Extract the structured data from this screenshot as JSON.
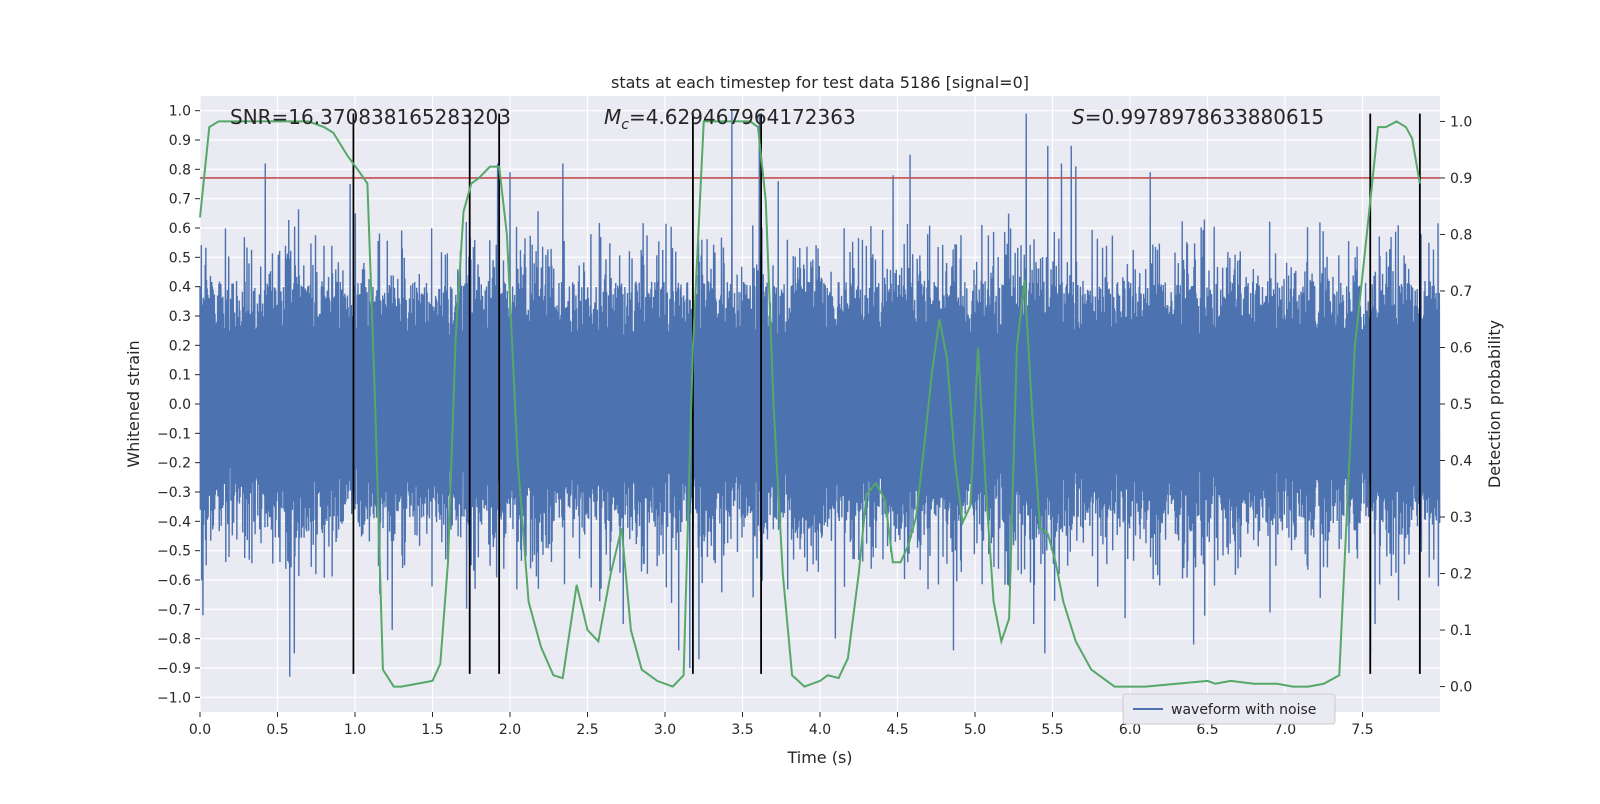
{
  "chart_data": {
    "type": "line",
    "title": "stats at each timestep for test data 5186 [signal=0]",
    "xlabel": "Time (s)",
    "ylabel": "Whitened strain",
    "y2label": "Detection probability",
    "xlim": [
      0,
      8
    ],
    "ylim": [
      -1.05,
      1.05
    ],
    "y2lim": [
      -0.045,
      1.045
    ],
    "grid": true,
    "legend_position": "lower-right",
    "x_ticks": [
      0.0,
      0.5,
      1.0,
      1.5,
      2.0,
      2.5,
      3.0,
      3.5,
      4.0,
      4.5,
      5.0,
      5.5,
      6.0,
      6.5,
      7.0,
      7.5
    ],
    "x_tick_labels": [
      "0.0",
      "0.5",
      "1.0",
      "1.5",
      "2.0",
      "2.5",
      "3.0",
      "3.5",
      "4.0",
      "4.5",
      "5.0",
      "5.5",
      "6.0",
      "6.5",
      "7.0",
      "7.5"
    ],
    "y_ticks": [
      1.0,
      0.9,
      0.8,
      0.7,
      0.6,
      0.5,
      0.4,
      0.3,
      0.2,
      0.1,
      0.0,
      -0.1,
      -0.2,
      -0.3,
      -0.4,
      -0.5,
      -0.6,
      -0.7,
      -0.8,
      -0.9,
      -1.0
    ],
    "y_tick_labels": [
      "1.0",
      "0.9",
      "0.8",
      "0.7",
      "0.6",
      "0.5",
      "0.4",
      "0.3",
      "0.2",
      "0.1",
      "0.0",
      "−0.1",
      "−0.2",
      "−0.3",
      "−0.4",
      "−0.5",
      "−0.6",
      "−0.7",
      "−0.8",
      "−0.9",
      "−1.0"
    ],
    "y2_ticks": [
      1.0,
      0.9,
      0.8,
      0.7,
      0.6,
      0.5,
      0.4,
      0.3,
      0.2,
      0.1,
      0.0
    ],
    "y2_tick_labels": [
      "1.0",
      "0.9",
      "0.8",
      "0.7",
      "0.6",
      "0.5",
      "0.4",
      "0.3",
      "0.2",
      "0.1",
      "0.0"
    ],
    "annotations": {
      "snr": "SNR=16.370838165283203",
      "mc_symbol": "M",
      "mc_subscript": "c",
      "mc_value": "=4.629467964172363",
      "s_symbol": "S",
      "s_value": "=0.9978978633880615"
    },
    "threshold": {
      "y2": 0.9,
      "color": "#c44e52"
    },
    "vertical_markers": {
      "x": [
        0.99,
        1.74,
        1.93,
        3.18,
        3.62,
        7.55,
        7.87
      ],
      "y_range": [
        -0.92,
        0.99
      ],
      "color": "#000000"
    },
    "series": [
      {
        "name": "waveform with noise",
        "color": "#4c72b0",
        "envelope_typical": 0.42,
        "peaks": [
          [
            0.02,
            -0.72
          ],
          [
            0.42,
            0.82
          ],
          [
            0.58,
            -0.93
          ],
          [
            0.61,
            -0.85
          ],
          [
            0.97,
            0.75
          ],
          [
            1.0,
            0.65
          ],
          [
            1.24,
            -0.77
          ],
          [
            1.92,
            0.82
          ],
          [
            2.0,
            0.79
          ],
          [
            2.34,
            0.82
          ],
          [
            2.73,
            -0.75
          ],
          [
            3.09,
            -0.84
          ],
          [
            3.16,
            -0.9
          ],
          [
            3.22,
            -0.87
          ],
          [
            3.43,
            1.0
          ],
          [
            3.61,
            0.99
          ],
          [
            3.73,
            0.76
          ],
          [
            4.1,
            -0.8
          ],
          [
            4.47,
            0.78
          ],
          [
            4.58,
            0.85
          ],
          [
            4.86,
            -0.84
          ],
          [
            5.33,
            0.99
          ],
          [
            5.38,
            -0.75
          ],
          [
            5.45,
            -0.85
          ],
          [
            5.47,
            0.88
          ],
          [
            5.56,
            0.82
          ],
          [
            5.62,
            0.88
          ],
          [
            5.65,
            0.81
          ],
          [
            5.97,
            -0.73
          ],
          [
            6.13,
            0.79
          ],
          [
            6.41,
            -0.82
          ],
          [
            7.55,
            -0.85
          ],
          [
            7.58,
            -0.75
          ]
        ]
      },
      {
        "name": "",
        "axis": "y2",
        "color": "#55a868",
        "x": [
          0.0,
          0.06,
          0.12,
          0.2,
          0.3,
          0.4,
          0.5,
          0.6,
          0.7,
          0.8,
          0.86,
          0.95,
          1.03,
          1.08,
          1.13,
          1.18,
          1.25,
          1.3,
          1.4,
          1.5,
          1.55,
          1.6,
          1.65,
          1.7,
          1.75,
          1.8,
          1.87,
          1.93,
          1.98,
          2.05,
          2.12,
          2.2,
          2.28,
          2.34,
          2.43,
          2.5,
          2.57,
          2.65,
          2.72,
          2.78,
          2.85,
          2.95,
          3.05,
          3.12,
          3.18,
          3.25,
          3.35,
          3.45,
          3.55,
          3.6,
          3.65,
          3.7,
          3.76,
          3.82,
          3.9,
          4.0,
          4.05,
          4.12,
          4.18,
          4.25,
          4.3,
          4.36,
          4.42,
          4.47,
          4.52,
          4.57,
          4.62,
          4.67,
          4.72,
          4.77,
          4.82,
          4.87,
          4.92,
          4.97,
          5.02,
          5.07,
          5.12,
          5.17,
          5.22,
          5.27,
          5.32,
          5.37,
          5.42,
          5.47,
          5.52,
          5.57,
          5.65,
          5.75,
          5.9,
          6.1,
          6.3,
          6.5,
          6.55,
          6.65,
          6.8,
          6.95,
          7.05,
          7.15,
          7.25,
          7.35,
          7.45,
          7.52,
          7.6,
          7.65,
          7.72,
          7.78,
          7.82,
          7.87
        ],
        "y": [
          0.83,
          0.99,
          1.0,
          1.0,
          1.0,
          1.0,
          1.0,
          1.0,
          1.0,
          0.99,
          0.98,
          0.94,
          0.91,
          0.89,
          0.5,
          0.03,
          0.0,
          0.0,
          0.005,
          0.01,
          0.04,
          0.22,
          0.62,
          0.84,
          0.89,
          0.9,
          0.92,
          0.92,
          0.8,
          0.4,
          0.15,
          0.07,
          0.02,
          0.015,
          0.18,
          0.1,
          0.08,
          0.2,
          0.28,
          0.1,
          0.03,
          0.01,
          0.0,
          0.02,
          0.6,
          1.0,
          1.0,
          1.0,
          1.0,
          0.99,
          0.86,
          0.5,
          0.2,
          0.02,
          0.0,
          0.01,
          0.02,
          0.015,
          0.05,
          0.2,
          0.34,
          0.36,
          0.33,
          0.22,
          0.22,
          0.25,
          0.3,
          0.42,
          0.55,
          0.65,
          0.58,
          0.4,
          0.29,
          0.32,
          0.6,
          0.35,
          0.15,
          0.08,
          0.12,
          0.6,
          0.72,
          0.48,
          0.28,
          0.27,
          0.22,
          0.15,
          0.08,
          0.03,
          0.0,
          0.0,
          0.005,
          0.01,
          0.005,
          0.01,
          0.005,
          0.005,
          0.0,
          0.0,
          0.005,
          0.02,
          0.6,
          0.78,
          0.99,
          0.99,
          1.0,
          0.99,
          0.97,
          0.89
        ]
      }
    ]
  }
}
